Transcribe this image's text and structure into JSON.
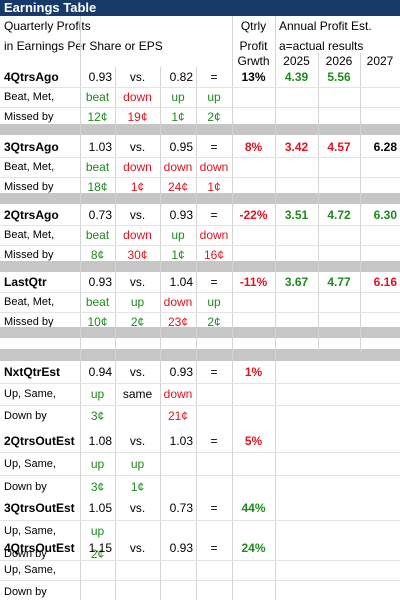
{
  "title": "Earnings Table",
  "header": {
    "line1": "Quarterly Profits",
    "line2": "in Earnings Per Share or EPS",
    "qtrly_line1": "Qtrly",
    "qtrly_line2": "Profit",
    "qtrly_line3": "Grwth",
    "annual_line1": "Annual Profit Est.",
    "annual_line2": "a=actual results",
    "years": [
      "2025",
      "2026",
      "2027"
    ]
  },
  "blocks": [
    {
      "name": "4QtrsAgo",
      "sub1": "Beat, Met,",
      "sub2": "Missed by",
      "v1": "0.93",
      "vs": "vs.",
      "v2": "0.82",
      "eq": "=",
      "growth": "13%",
      "growth_color": "#000000",
      "words": [
        "beat",
        "down",
        "up",
        "up"
      ],
      "amounts": [
        "12¢",
        "19¢",
        "1¢",
        "2¢"
      ],
      "annual": [
        "4.39",
        "5.56",
        ""
      ],
      "annual_colors": [
        "#1e8a1e",
        "#1e8a1e",
        "#000000"
      ]
    },
    {
      "name": "3QtrsAgo",
      "sub1": "Beat, Met,",
      "sub2": "Missed by",
      "v1": "1.03",
      "vs": "vs.",
      "v2": "0.95",
      "eq": "=",
      "growth": "8%",
      "growth_color": "#e0141e",
      "words": [
        "beat",
        "down",
        "down",
        "down"
      ],
      "amounts": [
        "18¢",
        "1¢",
        "24¢",
        "1¢"
      ],
      "annual": [
        "3.42",
        "4.57",
        "6.28"
      ],
      "annual_colors": [
        "#e0141e",
        "#e0141e",
        "#000000"
      ]
    },
    {
      "name": "2QtrsAgo",
      "sub1": "Beat, Met,",
      "sub2": "Missed by",
      "v1": "0.73",
      "vs": "vs.",
      "v2": "0.93",
      "eq": "=",
      "growth": "-22%",
      "growth_color": "#e0141e",
      "words": [
        "beat",
        "down",
        "up",
        "down"
      ],
      "amounts": [
        "8¢",
        "30¢",
        "1¢",
        "16¢"
      ],
      "annual": [
        "3.51",
        "4.72",
        "6.30"
      ],
      "annual_colors": [
        "#1e8a1e",
        "#1e8a1e",
        "#1e8a1e"
      ]
    },
    {
      "name": "LastQtr",
      "sub1": "Beat, Met,",
      "sub2": "Missed by",
      "v1": "0.93",
      "vs": "vs.",
      "v2": "1.04",
      "eq": "=",
      "growth": "-11%",
      "growth_color": "#e0141e",
      "words": [
        "beat",
        "up",
        "down",
        "up"
      ],
      "amounts": [
        "10¢",
        "2¢",
        "23¢",
        "2¢"
      ],
      "annual": [
        "3.67",
        "4.77",
        "6.16"
      ],
      "annual_colors": [
        "#1e8a1e",
        "#1e8a1e",
        "#e0141e"
      ]
    }
  ],
  "estimates": [
    {
      "name": "NxtQtrEst",
      "sub1": "Up, Same,",
      "sub2": "Down by",
      "v1": "0.94",
      "vs": "vs.",
      "v2": "0.93",
      "eq": "=",
      "growth": "1%",
      "growth_color": "#e0141e",
      "w1": "up",
      "w1_color": "#1e8a1e",
      "mid": "same",
      "w2": "down",
      "w2_color": "#e0141e",
      "a1": "3¢",
      "a1_color": "#1e8a1e",
      "a2": "21¢",
      "a2_color": "#e0141e"
    },
    {
      "name": "2QtrsOutEst",
      "sub1": "Up, Same,",
      "sub2": "Down by",
      "v1": "1.08",
      "vs": "vs.",
      "v2": "1.03",
      "eq": "=",
      "growth": "5%",
      "growth_color": "#e0141e",
      "w1": "up",
      "w1_color": "#1e8a1e",
      "mid": "up",
      "w2": "",
      "w2_color": "#000000",
      "a1": "3¢",
      "a1_color": "#1e8a1e",
      "a2": "1¢",
      "a2_color": "#1e8a1e"
    },
    {
      "name": "3QtrsOutEst",
      "sub1": "Up, Same,",
      "sub2": "Down by",
      "v1": "1.05",
      "vs": "vs.",
      "v2": "0.73",
      "eq": "=",
      "growth": "44%",
      "growth_color": "#1e8a1e",
      "w1": "up",
      "w1_color": "#1e8a1e",
      "mid": "",
      "w2": "",
      "w2_color": "#000000",
      "a1": "2¢",
      "a1_color": "#1e8a1e",
      "a2": "",
      "a2_color": "#000000"
    },
    {
      "name": "4QtrsOutEst",
      "sub1": "Up, Same,",
      "sub2": "Down by",
      "v1": "1.15",
      "vs": "vs.",
      "v2": "0.93",
      "eq": "=",
      "growth": "24%",
      "growth_color": "#1e8a1e",
      "w1": "",
      "w1_color": "#000000",
      "mid": "",
      "w2": "",
      "w2_color": "#000000",
      "a1": "",
      "a1_color": "#000000",
      "a2": "",
      "a2_color": "#000000"
    }
  ],
  "colors": {
    "title_bg": "#173a6a",
    "green": "#1e8a1e",
    "red": "#e0141e",
    "separator": "#c6c6c6"
  }
}
